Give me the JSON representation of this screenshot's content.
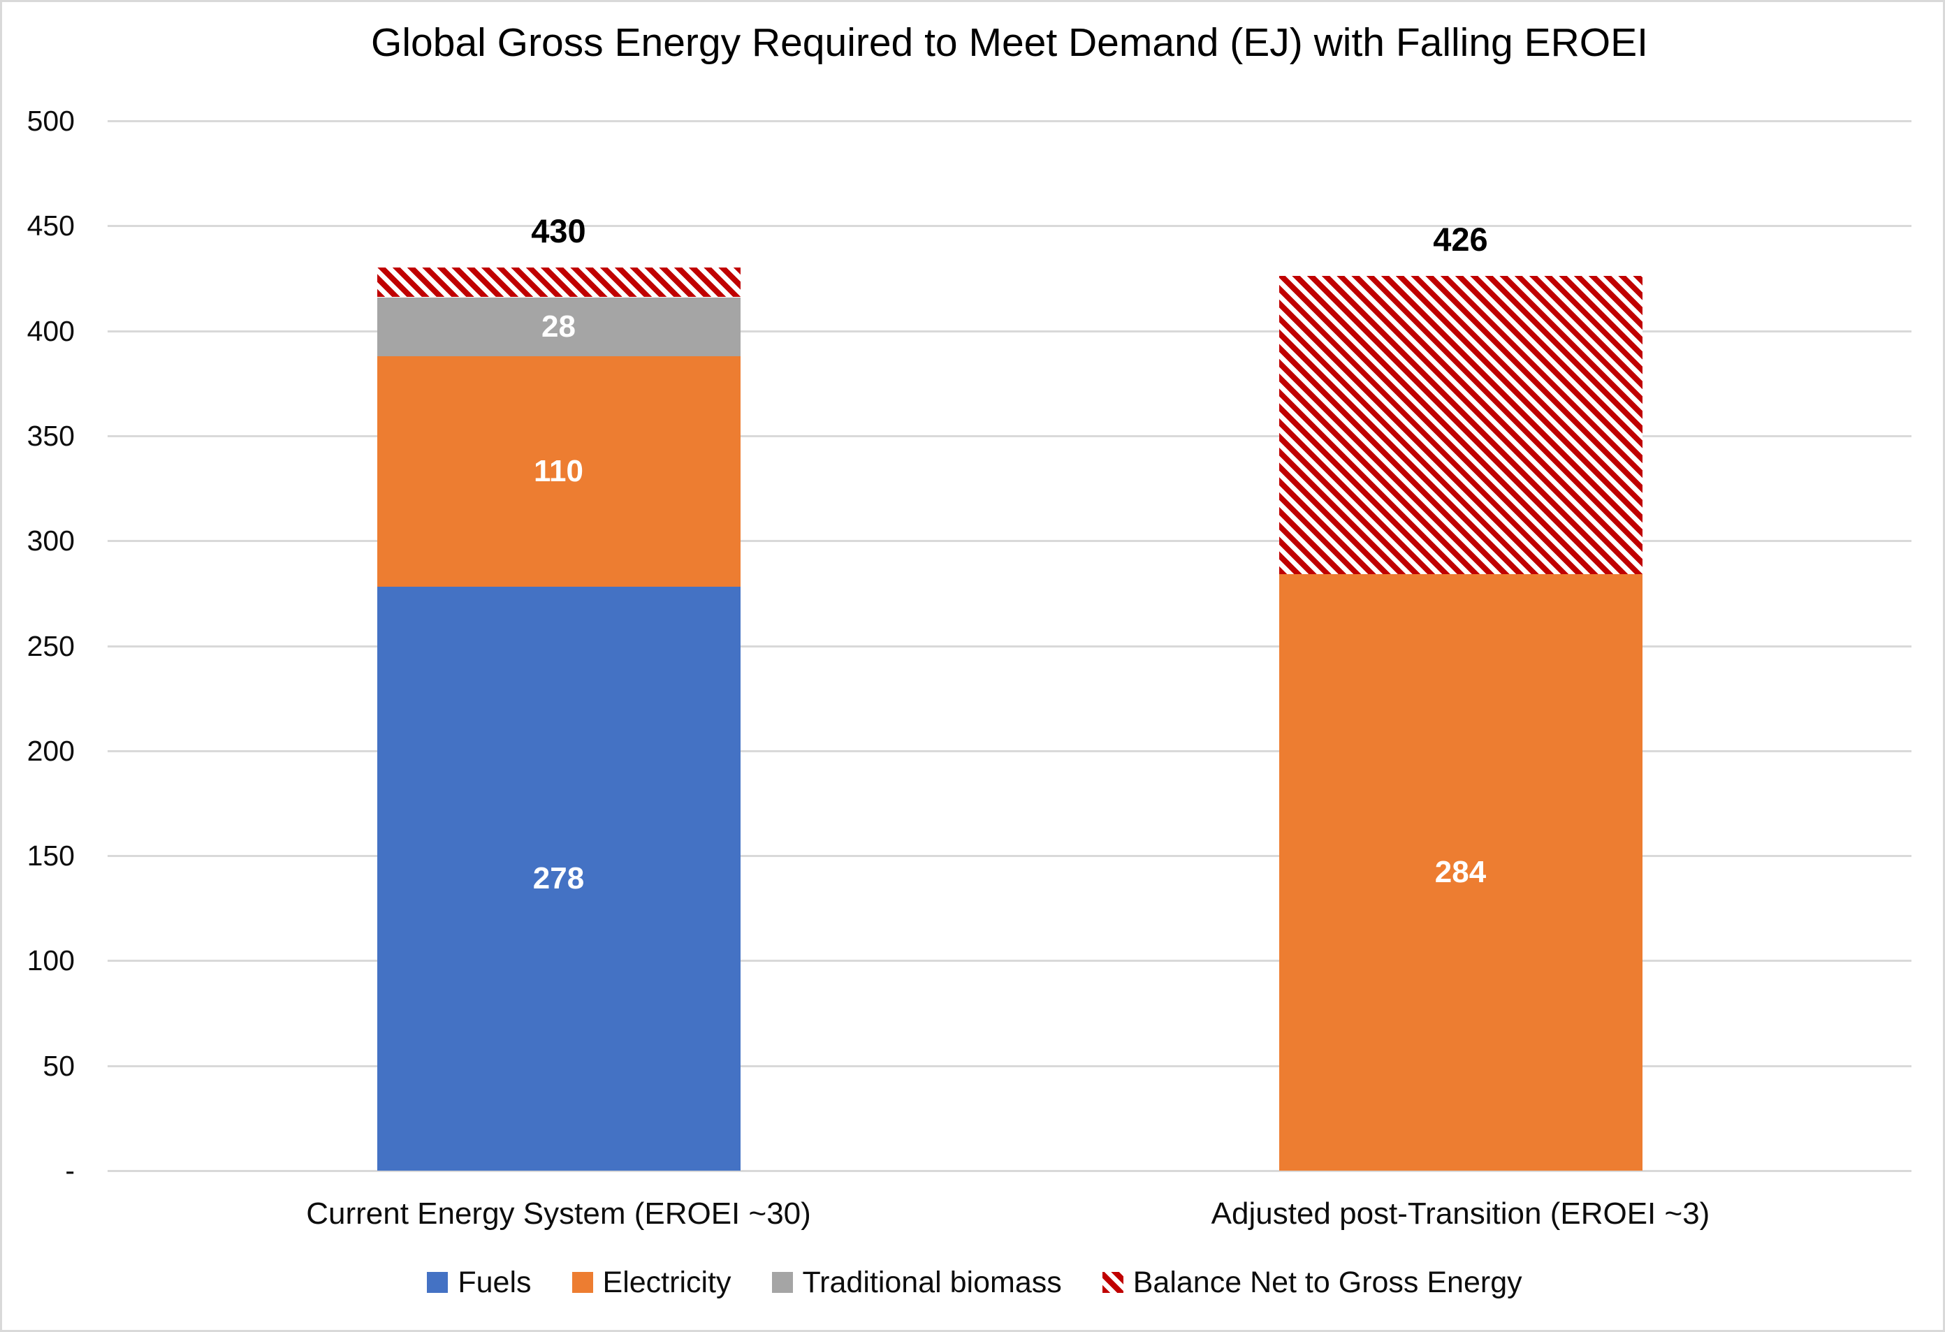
{
  "title": "Global Gross Energy Required to Meet Demand (EJ) with Falling EROEI",
  "colors": {
    "fuels": "#4472c4",
    "electricity": "#ed7d31",
    "biomass": "#a5a5a5",
    "balance_hatch_red": "#c00000",
    "gridline": "#d9d9d9",
    "value_label": "#ffffff",
    "text": "#0d0d0d"
  },
  "chart_data": {
    "type": "bar",
    "stacked": true,
    "title": "Global Gross Energy Required to Meet Demand (EJ) with Falling EROEI",
    "categories": [
      "Current Energy System (EROEI ~30)",
      "Adjusted post-Transition (EROEI ~3)"
    ],
    "series": [
      {
        "name": "Fuels",
        "color_key": "fuels",
        "hatch": false,
        "data_labels": true,
        "values": [
          278,
          0
        ]
      },
      {
        "name": "Electricity",
        "color_key": "electricity",
        "hatch": false,
        "data_labels": true,
        "values": [
          110,
          284
        ]
      },
      {
        "name": "Traditional biomass",
        "color_key": "biomass",
        "hatch": false,
        "data_labels": true,
        "values": [
          28,
          0
        ]
      },
      {
        "name": "Balance Net to Gross Energy",
        "color_key": "balance",
        "hatch": true,
        "data_labels": false,
        "values": [
          14,
          142
        ]
      }
    ],
    "totals": [
      430,
      426
    ],
    "ylim": [
      0,
      500
    ],
    "ytick_step": 50,
    "ytick_labels": [
      "-",
      "50",
      "100",
      "150",
      "200",
      "250",
      "300",
      "350",
      "400",
      "450",
      "500"
    ],
    "grid": true,
    "legend_position": "bottom",
    "xlabel": "",
    "ylabel": ""
  }
}
